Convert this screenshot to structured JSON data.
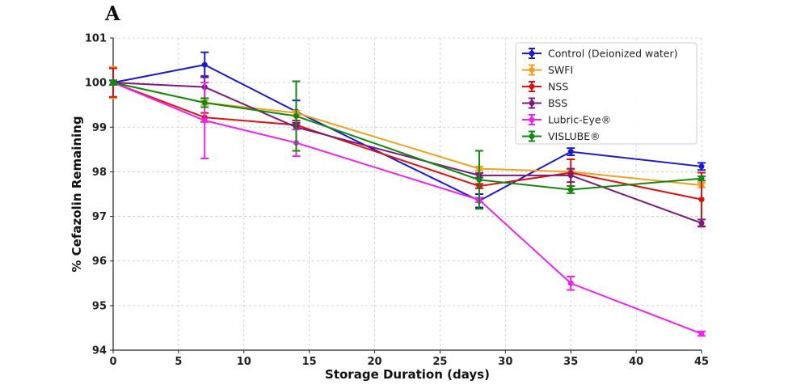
{
  "panel_label": "A",
  "chart_data": {
    "type": "line",
    "xlabel": "Storage Duration (days)",
    "ylabel": "% Cefazolin Remaining",
    "xlim": [
      0,
      45
    ],
    "ylim": [
      94,
      101
    ],
    "xticks": [
      0,
      5,
      10,
      15,
      20,
      25,
      30,
      35,
      40,
      45
    ],
    "yticks": [
      94,
      95,
      96,
      97,
      98,
      99,
      100,
      101
    ],
    "grid": true,
    "legend_position": "top-right",
    "x": [
      0,
      7,
      14,
      28,
      35,
      45
    ],
    "series": [
      {
        "name": "Control (Deionized water)",
        "color": "#1a1acc",
        "values": [
          100.0,
          100.4,
          99.35,
          97.35,
          98.45,
          98.12
        ],
        "errors": [
          0.05,
          0.28,
          0.25,
          0.15,
          0.08,
          0.08
        ]
      },
      {
        "name": "SWFI",
        "color": "#f0a020",
        "values": [
          100.0,
          99.55,
          99.32,
          98.07,
          98.0,
          97.7
        ],
        "errors": [
          0.35,
          0.05,
          0.05,
          0.05,
          0.05,
          0.05
        ]
      },
      {
        "name": "NSS",
        "color": "#dd1111",
        "values": [
          100.0,
          99.22,
          99.05,
          97.68,
          97.98,
          97.38
        ],
        "errors": [
          0.32,
          0.1,
          0.1,
          0.05,
          0.3,
          0.6
        ]
      },
      {
        "name": "BSS",
        "color": "#7a1a7a",
        "values": [
          100.0,
          99.9,
          99.0,
          97.92,
          97.92,
          96.85
        ],
        "errors": [
          0.05,
          0.25,
          0.05,
          0.05,
          0.15,
          0.08
        ]
      },
      {
        "name": "Lubric-Eye®",
        "color": "#ee22ee",
        "values": [
          100.0,
          99.15,
          98.65,
          97.37,
          95.5,
          94.37
        ],
        "errors": [
          0.05,
          0.85,
          0.3,
          0.05,
          0.15,
          0.05
        ]
      },
      {
        "name": "VISLUBE®",
        "color": "#118811",
        "values": [
          100.0,
          99.55,
          99.25,
          97.82,
          97.6,
          97.85
        ],
        "errors": [
          0.05,
          0.1,
          0.78,
          0.65,
          0.08,
          0.05
        ]
      }
    ]
  }
}
